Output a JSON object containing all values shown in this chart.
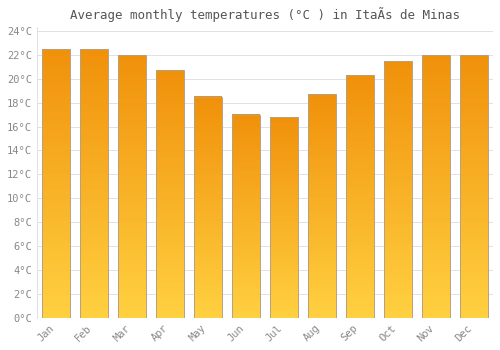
{
  "title": "Average monthly temperatures (°C ) in ItaÃ£s de Minas",
  "title_display": "Average monthly temperatures (°C ) in ItaÃs de Minas",
  "months": [
    "Jan",
    "Feb",
    "Mar",
    "Apr",
    "May",
    "Jun",
    "Jul",
    "Aug",
    "Sep",
    "Oct",
    "Nov",
    "Dec"
  ],
  "values": [
    22.5,
    22.5,
    22.0,
    20.7,
    18.5,
    17.0,
    16.8,
    18.7,
    20.3,
    21.5,
    22.0,
    22.0
  ],
  "bar_color_bright": "#FFD040",
  "bar_color_dark": "#F0900A",
  "bar_edge_color": "#B8A080",
  "background_color": "#FFFFFF",
  "grid_color": "#E0E0E8",
  "tick_label_color": "#888888",
  "title_color": "#555555",
  "ylim": [
    0,
    24
  ],
  "ytick_step": 2,
  "bar_width": 0.75,
  "title_fontsize": 9,
  "tick_fontsize": 7.5,
  "font_family": "monospace"
}
